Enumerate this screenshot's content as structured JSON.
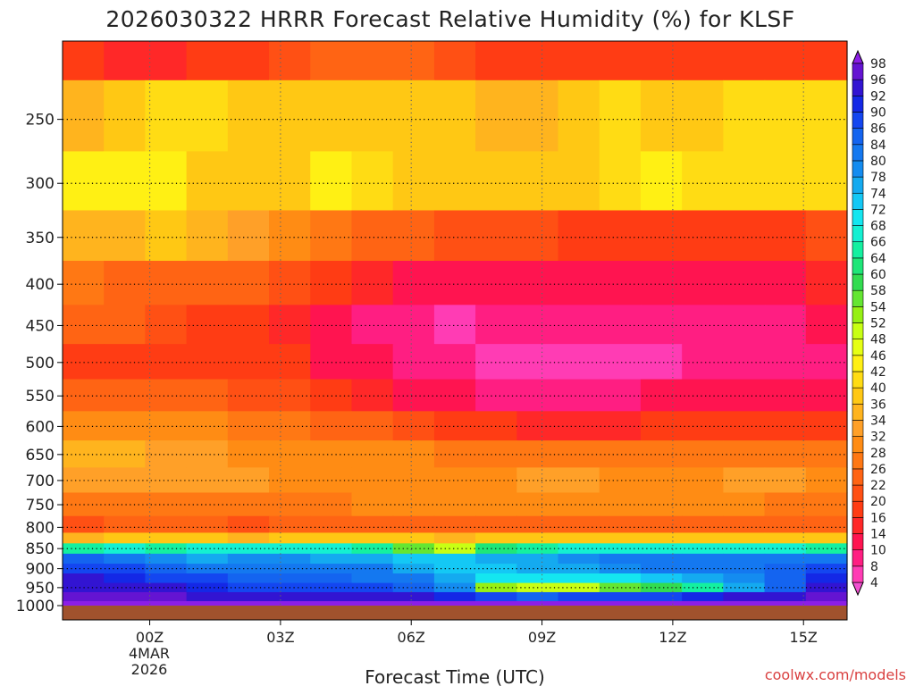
{
  "chart_data": {
    "type": "heatmap",
    "title": "2026030322 HRRR Forecast Relative Humidity (%) for KLSF",
    "xlabel": "Forecast Time (UTC)",
    "x_ticks": [
      {
        "label": "00Z",
        "hour": 2
      },
      {
        "label": "03Z",
        "hour": 5
      },
      {
        "label": "06Z",
        "hour": 8
      },
      {
        "label": "09Z",
        "hour": 11
      },
      {
        "label": "12Z",
        "hour": 14
      },
      {
        "label": "15Z",
        "hour": 17
      }
    ],
    "date_label": [
      "4MAR",
      "2026"
    ],
    "xlim": [
      0,
      18
    ],
    "y_ticks": [
      250,
      300,
      350,
      400,
      450,
      500,
      550,
      600,
      650,
      700,
      750,
      800,
      850,
      900,
      950,
      1000
    ],
    "ylim": [
      200,
      1000
    ],
    "y_scale": "log",
    "grid": true,
    "colorbar": [
      4,
      8,
      10,
      14,
      16,
      20,
      22,
      26,
      28,
      32,
      34,
      36,
      40,
      42,
      46,
      48,
      52,
      54,
      58,
      60,
      64,
      66,
      68,
      72,
      74,
      78,
      80,
      84,
      86,
      90,
      92,
      96,
      98
    ],
    "colorbar_colors": [
      "#f050d0",
      "#ff3cb4",
      "#ff1e82",
      "#ff1450",
      "#ff2828",
      "#ff3c14",
      "#ff5014",
      "#ff6414",
      "#ff7814",
      "#ff8c14",
      "#ffa028",
      "#ffb41e",
      "#ffc814",
      "#ffdc14",
      "#fff014",
      "#e6ff14",
      "#c8ff14",
      "#96f014",
      "#64e632",
      "#32dc50",
      "#1ee678",
      "#14f0a0",
      "#14f0d2",
      "#14e6f0",
      "#14c8f5",
      "#14aaf0",
      "#148cf0",
      "#1478f0",
      "#1464f0",
      "#1446f0",
      "#1428e6",
      "#3214d2",
      "#6414d2",
      "#8c1ee6"
    ],
    "colorbar_extend": "both",
    "pressure_levels": [
      200,
      250,
      300,
      350,
      400,
      450,
      500,
      550,
      600,
      650,
      700,
      750,
      800,
      825,
      850,
      875,
      900,
      925,
      950,
      975,
      1000
    ],
    "values": [
      [
        16,
        14,
        14,
        16,
        18,
        20,
        22,
        22,
        22,
        20,
        18,
        18,
        18,
        18,
        18,
        18,
        18,
        18,
        18
      ],
      [
        34,
        36,
        40,
        40,
        38,
        38,
        36,
        38,
        38,
        36,
        34,
        34,
        38,
        40,
        38,
        38,
        40,
        40,
        40
      ],
      [
        42,
        44,
        42,
        38,
        36,
        36,
        42,
        40,
        38,
        38,
        36,
        36,
        38,
        40,
        42,
        40,
        40,
        40,
        40
      ],
      [
        34,
        34,
        36,
        34,
        32,
        30,
        26,
        24,
        22,
        20,
        20,
        20,
        18,
        18,
        18,
        18,
        18,
        18,
        20
      ],
      [
        26,
        24,
        24,
        22,
        22,
        20,
        16,
        14,
        12,
        10,
        10,
        10,
        10,
        10,
        10,
        10,
        10,
        12,
        14
      ],
      [
        22,
        22,
        20,
        18,
        16,
        14,
        10,
        8,
        8,
        6,
        8,
        8,
        8,
        8,
        8,
        8,
        8,
        8,
        10
      ],
      [
        18,
        16,
        18,
        18,
        18,
        16,
        12,
        10,
        8,
        8,
        6,
        6,
        6,
        6,
        6,
        8,
        8,
        8,
        8
      ],
      [
        22,
        22,
        22,
        22,
        20,
        20,
        16,
        14,
        12,
        10,
        8,
        8,
        8,
        8,
        10,
        10,
        10,
        10,
        10
      ],
      [
        30,
        30,
        28,
        28,
        26,
        26,
        24,
        22,
        20,
        18,
        16,
        14,
        14,
        14,
        16,
        16,
        16,
        16,
        16
      ],
      [
        34,
        34,
        32,
        32,
        30,
        30,
        30,
        28,
        28,
        26,
        26,
        26,
        26,
        26,
        26,
        26,
        26,
        26,
        26
      ],
      [
        32,
        32,
        32,
        32,
        32,
        30,
        30,
        30,
        30,
        30,
        30,
        32,
        32,
        30,
        30,
        30,
        32,
        32,
        30
      ],
      [
        26,
        26,
        26,
        26,
        26,
        26,
        26,
        28,
        28,
        28,
        28,
        28,
        28,
        28,
        28,
        28,
        28,
        26,
        26
      ],
      [
        20,
        22,
        22,
        22,
        20,
        22,
        22,
        22,
        22,
        22,
        22,
        22,
        22,
        22,
        22,
        22,
        22,
        22,
        22
      ],
      [
        34,
        36,
        36,
        36,
        34,
        36,
        36,
        36,
        36,
        34,
        36,
        36,
        36,
        36,
        36,
        36,
        36,
        36,
        36
      ],
      [
        64,
        66,
        64,
        66,
        66,
        66,
        66,
        64,
        54,
        48,
        60,
        64,
        66,
        66,
        66,
        66,
        66,
        66,
        64
      ],
      [
        84,
        82,
        78,
        76,
        78,
        78,
        74,
        74,
        72,
        72,
        74,
        76,
        78,
        80,
        80,
        80,
        80,
        80,
        82
      ],
      [
        86,
        86,
        84,
        82,
        82,
        80,
        80,
        80,
        76,
        72,
        72,
        74,
        76,
        78,
        80,
        80,
        82,
        84,
        86
      ],
      [
        92,
        90,
        88,
        86,
        84,
        84,
        84,
        82,
        80,
        74,
        68,
        68,
        68,
        70,
        72,
        74,
        78,
        84,
        90
      ],
      [
        94,
        94,
        92,
        90,
        88,
        88,
        86,
        86,
        84,
        78,
        52,
        48,
        50,
        54,
        58,
        64,
        74,
        84,
        92
      ],
      [
        96,
        96,
        96,
        94,
        94,
        92,
        92,
        92,
        92,
        90,
        86,
        84,
        86,
        88,
        88,
        90,
        92,
        92,
        96
      ],
      [
        98,
        98,
        98,
        98,
        98,
        98,
        98,
        98,
        98,
        98,
        98,
        98,
        98,
        98,
        98,
        98,
        98,
        98,
        98
      ]
    ],
    "ground_color": "#a0522d"
  },
  "watermark": "coolwx.com/models"
}
